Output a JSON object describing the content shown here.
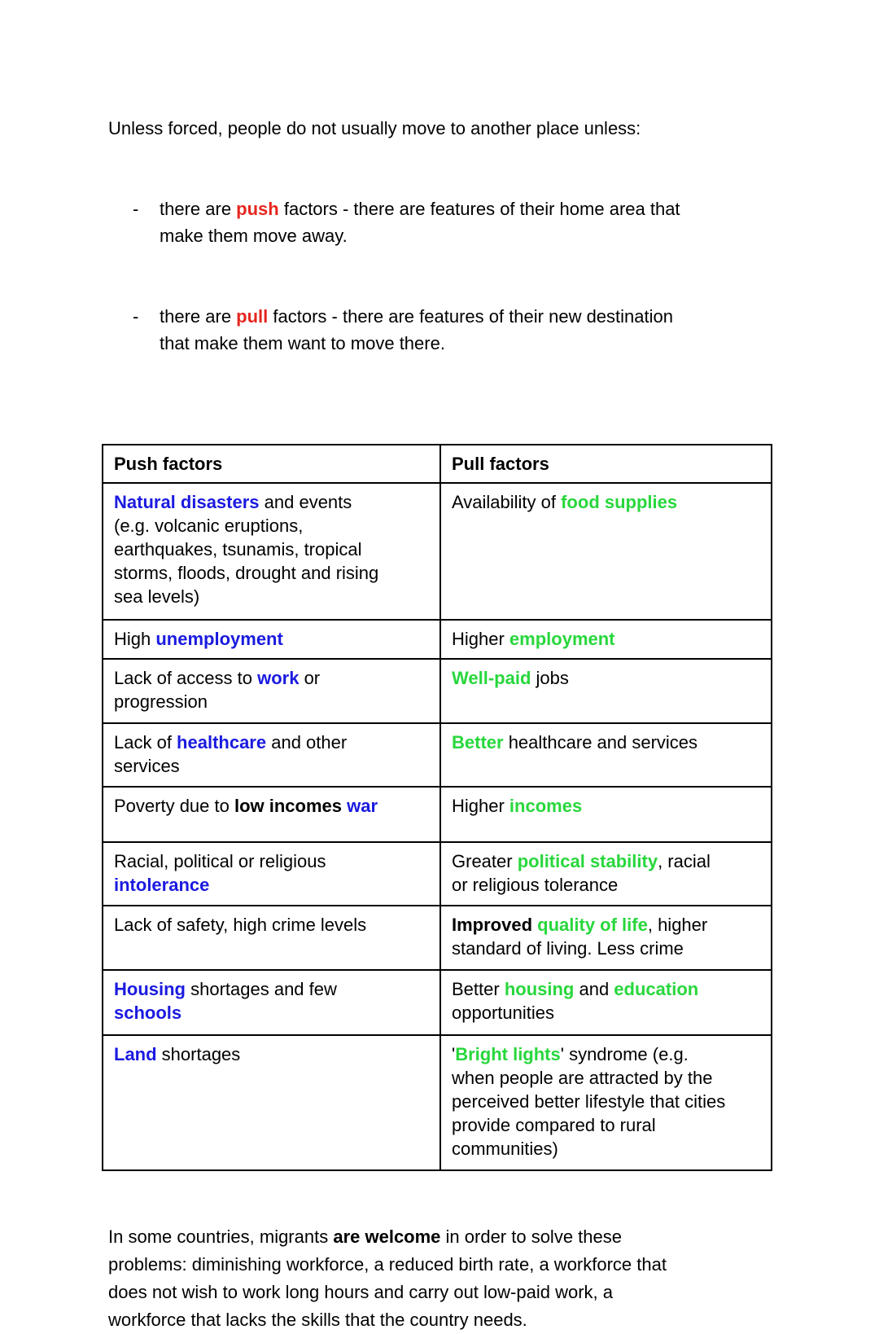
{
  "colors": {
    "text": "#000000",
    "accent_red": "#e5261f",
    "accent_blue": "#1a1ae0",
    "accent_green": "#28d73c",
    "table_border": "#000000",
    "background": "#ffffff"
  },
  "intro": {
    "lead": "Unless forced, people do not usually move to another place unless:",
    "bullet_marker": "-",
    "bullets": [
      [
        {
          "t": "there are "
        },
        {
          "t": "push",
          "s": "red"
        },
        {
          "t": " factors - there are features of their home area that\nmake them move away."
        }
      ],
      [
        {
          "t": "there are "
        },
        {
          "t": "pull",
          "s": "red"
        },
        {
          "t": " factors - there are features of their new destination\nthat make them want to move there."
        }
      ]
    ]
  },
  "table": {
    "headers": [
      "Push factors",
      "Pull factors"
    ],
    "rows": [
      {
        "push": [
          {
            "t": "Natural disasters",
            "s": "blue"
          },
          {
            "t": " and events\n(e.g. volcanic eruptions,\nearthquakes, tsunamis, tropical\nstorms, floods, drought and rising\nsea levels)"
          }
        ],
        "pull": [
          {
            "t": "Availability of "
          },
          {
            "t": "food supplies",
            "s": "green"
          }
        ]
      },
      {
        "push": [
          {
            "t": "High "
          },
          {
            "t": "unemployment",
            "s": "blue"
          }
        ],
        "pull": [
          {
            "t": "Higher "
          },
          {
            "t": "employment",
            "s": "green"
          }
        ]
      },
      {
        "push": [
          {
            "t": "Lack of access to "
          },
          {
            "t": "work",
            "s": "blue"
          },
          {
            "t": " or\nprogression"
          }
        ],
        "pull": [
          {
            "t": "Well-paid",
            "s": "green"
          },
          {
            "t": " jobs"
          }
        ]
      },
      {
        "push": [
          {
            "t": "Lack of "
          },
          {
            "t": "healthcare",
            "s": "blue"
          },
          {
            "t": " and other\nservices"
          }
        ],
        "pull": [
          {
            "t": "Better",
            "s": "green"
          },
          {
            "t": " healthcare and services"
          }
        ]
      },
      {
        "push": [
          {
            "t": "Poverty due to "
          },
          {
            "t": "low incomes",
            "s": "bold"
          },
          {
            "t": " "
          },
          {
            "t": "war",
            "s": "blue"
          }
        ],
        "pull": [
          {
            "t": "Higher "
          },
          {
            "t": "incomes",
            "s": "green"
          }
        ]
      },
      {
        "push": [
          {
            "t": "Racial, political or religious\n"
          },
          {
            "t": "intolerance",
            "s": "blue"
          }
        ],
        "pull": [
          {
            "t": "Greater "
          },
          {
            "t": "political stability",
            "s": "green"
          },
          {
            "t": ", racial\nor religious tolerance"
          }
        ]
      },
      {
        "push": [
          {
            "t": "Lack of safety, high crime levels"
          }
        ],
        "pull": [
          {
            "t": "Improved",
            "s": "bold"
          },
          {
            "t": " "
          },
          {
            "t": "quality of life",
            "s": "green"
          },
          {
            "t": ", higher\nstandard of living. Less crime"
          }
        ]
      },
      {
        "push": [
          {
            "t": "Housing",
            "s": "blue"
          },
          {
            "t": " shortages and few\n"
          },
          {
            "t": "schools",
            "s": "blue"
          }
        ],
        "pull": [
          {
            "t": "Better "
          },
          {
            "t": "housing",
            "s": "green"
          },
          {
            "t": " and "
          },
          {
            "t": "education",
            "s": "green"
          },
          {
            "t": "\nopportunities"
          }
        ]
      },
      {
        "push": [
          {
            "t": "Land",
            "s": "blue"
          },
          {
            "t": " shortages"
          }
        ],
        "pull": [
          {
            "t": "'"
          },
          {
            "t": "Bright lights",
            "s": "green"
          },
          {
            "t": "' syndrome (e.g.\nwhen people are attracted by the\nperceived better lifestyle that cities\nprovide compared to rural\ncommunities)"
          }
        ]
      }
    ]
  },
  "closing": [
    {
      "t": "In some countries, migrants "
    },
    {
      "t": "are welcome",
      "s": "bold"
    },
    {
      "t": " in order to solve these\nproblems: diminishing workforce, a reduced birth rate, a workforce that\ndoes not wish to work long hours and carry out low-paid work, a\nworkforce that lacks the skills that the country needs."
    }
  ]
}
